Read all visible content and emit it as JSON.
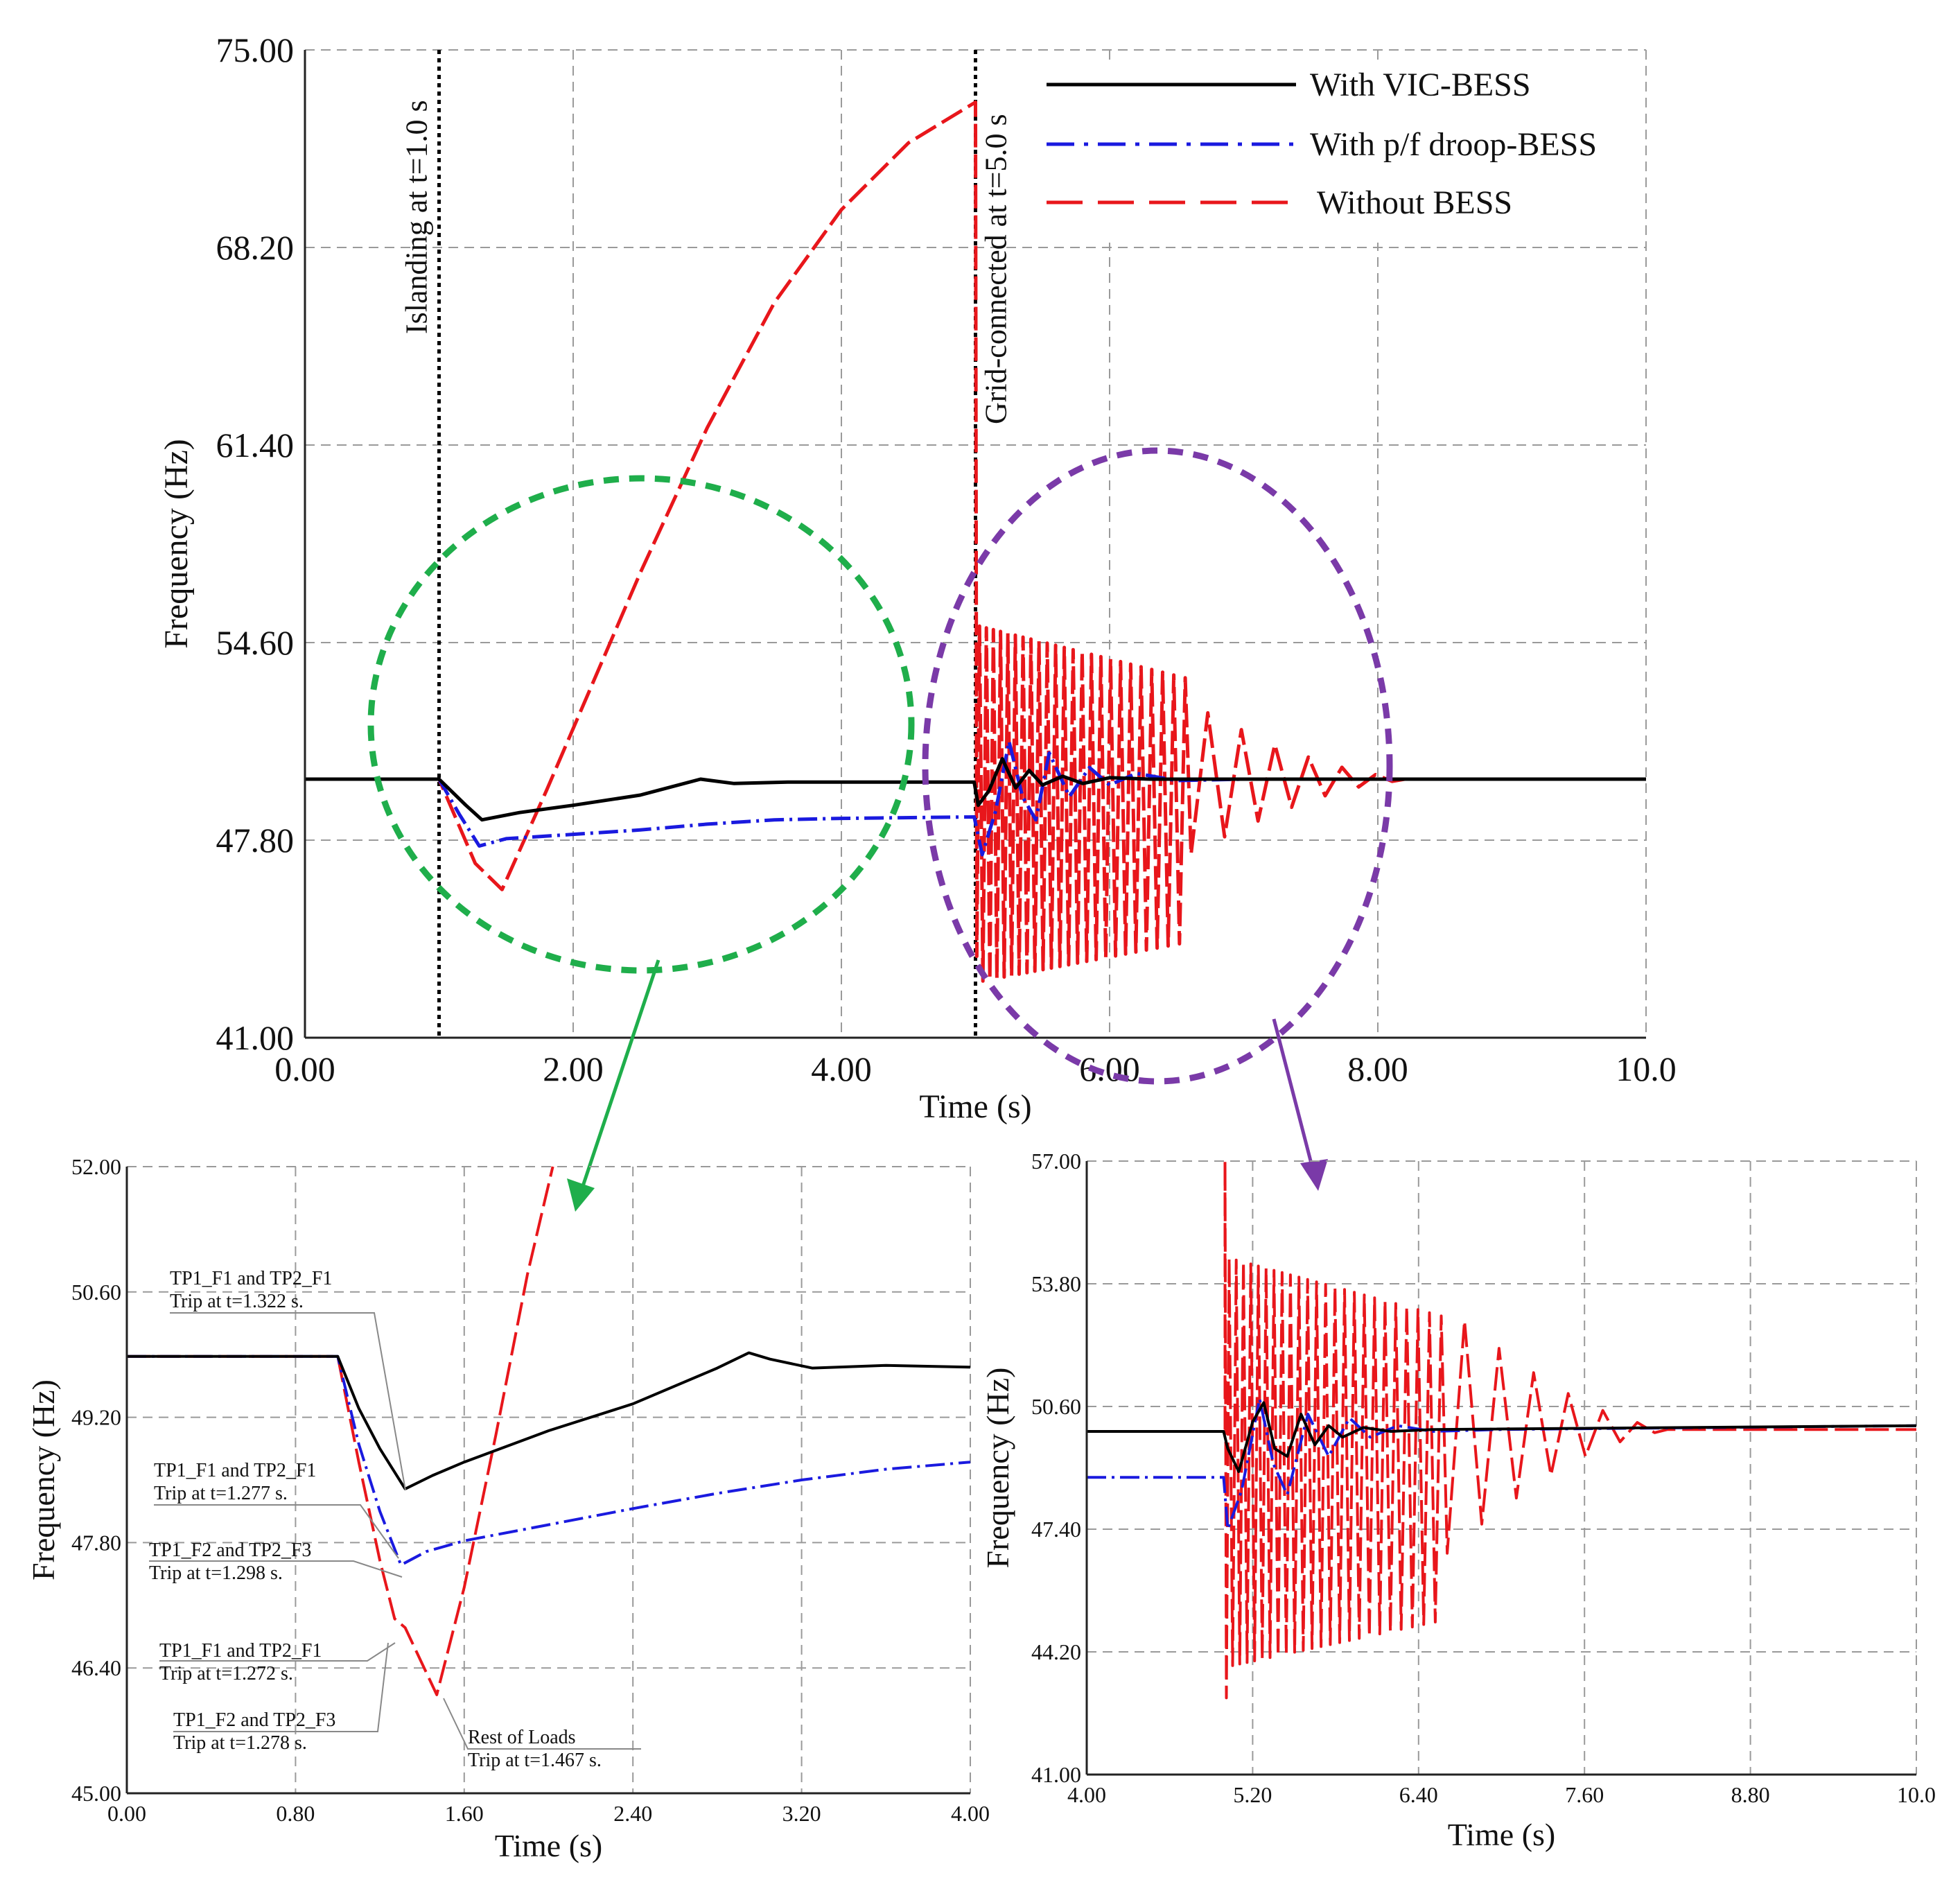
{
  "colors": {
    "vic": "#000000",
    "droop": "#1a1adf",
    "without": "#e8161b",
    "green_zoom": "#1fae4b",
    "purple_zoom": "#7a3aa8"
  },
  "chart_data": [
    {
      "id": "main",
      "type": "line",
      "xlabel": "Time (s)",
      "ylabel": "Frequency (Hz)",
      "xlim": [
        0,
        10
      ],
      "ylim": [
        41,
        75
      ],
      "x_ticks": [
        "0.00",
        "2.00",
        "4.00",
        "6.00",
        "8.00",
        "10.0"
      ],
      "y_ticks": [
        "41.00",
        "47.80",
        "54.60",
        "61.40",
        "68.20",
        "75.00"
      ],
      "grid": true,
      "legend": [
        "With VIC-BESS",
        "With p/f droop-BESS",
        "Without BESS"
      ],
      "legend_position": "top-right",
      "events": [
        {
          "x": 1.0,
          "label": "Islanding at t=1.0 s"
        },
        {
          "x": 5.0,
          "label": "Grid-connected at t=5.0 s"
        }
      ],
      "series": [
        {
          "name": "With VIC-BESS",
          "points": [
            [
              0,
              49.9
            ],
            [
              1.0,
              49.9
            ],
            [
              1.2,
              49.0
            ],
            [
              1.32,
              48.5
            ],
            [
              1.6,
              48.75
            ],
            [
              2.0,
              49.0
            ],
            [
              2.5,
              49.35
            ],
            [
              2.95,
              49.9
            ],
            [
              3.2,
              49.75
            ],
            [
              3.6,
              49.8
            ],
            [
              4.0,
              49.8
            ],
            [
              4.99,
              49.8
            ],
            [
              5.02,
              49.0
            ],
            [
              5.1,
              49.5
            ],
            [
              5.2,
              50.6
            ],
            [
              5.3,
              49.6
            ],
            [
              5.4,
              50.2
            ],
            [
              5.5,
              49.7
            ],
            [
              5.65,
              50.0
            ],
            [
              5.8,
              49.75
            ],
            [
              6.0,
              49.95
            ],
            [
              6.3,
              49.9
            ],
            [
              7,
              49.9
            ],
            [
              8,
              49.9
            ],
            [
              10,
              49.9
            ]
          ]
        },
        {
          "name": "With p/f droop-BESS",
          "points": [
            [
              0,
              49.9
            ],
            [
              1.0,
              49.9
            ],
            [
              1.15,
              48.7
            ],
            [
              1.3,
              47.6
            ],
            [
              1.5,
              47.85
            ],
            [
              2.0,
              48.0
            ],
            [
              2.5,
              48.15
            ],
            [
              3.0,
              48.35
            ],
            [
              3.5,
              48.5
            ],
            [
              4.0,
              48.55
            ],
            [
              4.99,
              48.6
            ],
            [
              5.05,
              47.3
            ],
            [
              5.15,
              48.8
            ],
            [
              5.25,
              51.2
            ],
            [
              5.35,
              49.3
            ],
            [
              5.45,
              48.5
            ],
            [
              5.55,
              50.8
            ],
            [
              5.7,
              49.3
            ],
            [
              5.85,
              50.3
            ],
            [
              6.0,
              49.7
            ],
            [
              6.2,
              50.1
            ],
            [
              6.5,
              49.85
            ],
            [
              7,
              49.9
            ],
            [
              10,
              49.9
            ]
          ]
        },
        {
          "name": "Without BESS",
          "points": [
            [
              0,
              49.9
            ],
            [
              1.0,
              49.9
            ],
            [
              1.27,
              47.0
            ],
            [
              1.47,
              46.1
            ],
            [
              1.8,
              49.5
            ],
            [
              2.5,
              57.0
            ],
            [
              3.0,
              62.0
            ],
            [
              3.5,
              66.3
            ],
            [
              4.0,
              69.5
            ],
            [
              4.5,
              71.8
            ],
            [
              5.0,
              73.2
            ]
          ],
          "oscillation": {
            "t_start": 5.0,
            "t_mid": 6.6,
            "t_end": 8.2,
            "center": 49.9,
            "amp_hi": 5.3,
            "amp_lo": 7.0,
            "amp_late": 0.8,
            "period_fast": 0.05,
            "period_slow": 0.25,
            "initial_dip": 43.8
          }
        }
      ]
    },
    {
      "id": "zoom_left",
      "type": "line",
      "xlabel": "Time (s)",
      "ylabel": "Frequency (Hz)",
      "xlim": [
        0,
        4
      ],
      "ylim": [
        45,
        52
      ],
      "x_ticks": [
        "0.00",
        "0.80",
        "1.60",
        "2.40",
        "3.20",
        "4.00"
      ],
      "y_ticks": [
        "45.00",
        "46.40",
        "47.80",
        "49.20",
        "50.60",
        "52.00"
      ],
      "grid": true,
      "annotations": [
        {
          "line1": "TP1_F1 and TP2_F1",
          "line2": "Trip at t=1.322 s."
        },
        {
          "line1": "TP1_F1 and TP2_F1",
          "line2": "Trip at t=1.277 s."
        },
        {
          "line1": "TP1_F2 and TP2_F3",
          "line2": "Trip at t=1.298 s."
        },
        {
          "line1": "TP1_F1 and TP2_F1",
          "line2": "Trip at t=1.272 s."
        },
        {
          "line1": "TP1_F2 and TP2_F3",
          "line2": "Trip at t=1.278 s."
        },
        {
          "line1": "Rest of Loads",
          "line2": "Trip at t=1.467 s."
        }
      ],
      "series": [
        {
          "name": "With VIC-BESS",
          "points": [
            [
              0,
              49.88
            ],
            [
              1.0,
              49.88
            ],
            [
              1.1,
              49.3
            ],
            [
              1.2,
              48.85
            ],
            [
              1.32,
              48.4
            ],
            [
              1.45,
              48.55
            ],
            [
              1.6,
              48.7
            ],
            [
              2.0,
              49.05
            ],
            [
              2.4,
              49.35
            ],
            [
              2.8,
              49.75
            ],
            [
              2.95,
              49.92
            ],
            [
              3.05,
              49.85
            ],
            [
              3.25,
              49.75
            ],
            [
              3.6,
              49.78
            ],
            [
              4.0,
              49.76
            ]
          ]
        },
        {
          "name": "With p/f droop-BESS",
          "points": [
            [
              0,
              49.88
            ],
            [
              1.0,
              49.88
            ],
            [
              1.1,
              48.9
            ],
            [
              1.2,
              48.15
            ],
            [
              1.3,
              47.55
            ],
            [
              1.42,
              47.7
            ],
            [
              1.6,
              47.82
            ],
            [
              2.0,
              48.0
            ],
            [
              2.4,
              48.18
            ],
            [
              2.8,
              48.35
            ],
            [
              3.2,
              48.5
            ],
            [
              3.6,
              48.62
            ],
            [
              4.0,
              48.7
            ]
          ]
        },
        {
          "name": "Without BESS",
          "points": [
            [
              0,
              49.88
            ],
            [
              1.0,
              49.88
            ],
            [
              1.1,
              48.7
            ],
            [
              1.2,
              47.6
            ],
            [
              1.27,
              46.95
            ],
            [
              1.32,
              46.85
            ],
            [
              1.47,
              46.1
            ],
            [
              1.6,
              47.3
            ],
            [
              1.75,
              49.0
            ],
            [
              1.9,
              50.8
            ],
            [
              2.02,
              52.0
            ]
          ]
        }
      ]
    },
    {
      "id": "zoom_right",
      "type": "line",
      "xlabel": "Time (s)",
      "ylabel": "Frequency (Hz)",
      "xlim": [
        4,
        10
      ],
      "ylim": [
        41,
        57
      ],
      "x_ticks": [
        "4.00",
        "5.20",
        "6.40",
        "7.60",
        "8.80",
        "10.0"
      ],
      "y_ticks": [
        "41.00",
        "44.20",
        "47.40",
        "50.60",
        "53.80",
        "57.00"
      ],
      "grid": true,
      "series": [
        {
          "name": "With VIC-BESS",
          "points": [
            [
              4,
              49.95
            ],
            [
              4.99,
              49.95
            ],
            [
              5.02,
              49.5
            ],
            [
              5.1,
              48.9
            ],
            [
              5.2,
              50.2
            ],
            [
              5.28,
              50.7
            ],
            [
              5.36,
              49.5
            ],
            [
              5.45,
              49.3
            ],
            [
              5.55,
              50.4
            ],
            [
              5.65,
              49.6
            ],
            [
              5.75,
              50.1
            ],
            [
              5.85,
              49.8
            ],
            [
              6.0,
              50.05
            ],
            [
              6.2,
              49.95
            ],
            [
              6.5,
              50.0
            ],
            [
              10,
              50.1
            ]
          ]
        },
        {
          "name": "With p/f droop-BESS",
          "points": [
            [
              4,
              48.75
            ],
            [
              4.99,
              48.75
            ],
            [
              5.02,
              47.4
            ],
            [
              5.12,
              48.4
            ],
            [
              5.25,
              50.8
            ],
            [
              5.35,
              49.1
            ],
            [
              5.45,
              48.3
            ],
            [
              5.6,
              50.4
            ],
            [
              5.75,
              49.3
            ],
            [
              5.9,
              50.3
            ],
            [
              6.05,
              49.8
            ],
            [
              6.25,
              50.1
            ],
            [
              6.5,
              49.95
            ],
            [
              7,
              50.0
            ],
            [
              10,
              50.1
            ]
          ]
        },
        {
          "name": "Without BESS",
          "points": [],
          "oscillation": {
            "t_start": 5.0,
            "t_mid": 6.6,
            "t_end": 8.2,
            "center": 50.0,
            "amp_hi": 4.5,
            "amp_lo": 6.2,
            "amp_late": 1.0,
            "period_fast": 0.05,
            "period_slow": 0.25,
            "initial_spike": 57.0,
            "initial_dip": 43.0
          }
        }
      ]
    }
  ]
}
